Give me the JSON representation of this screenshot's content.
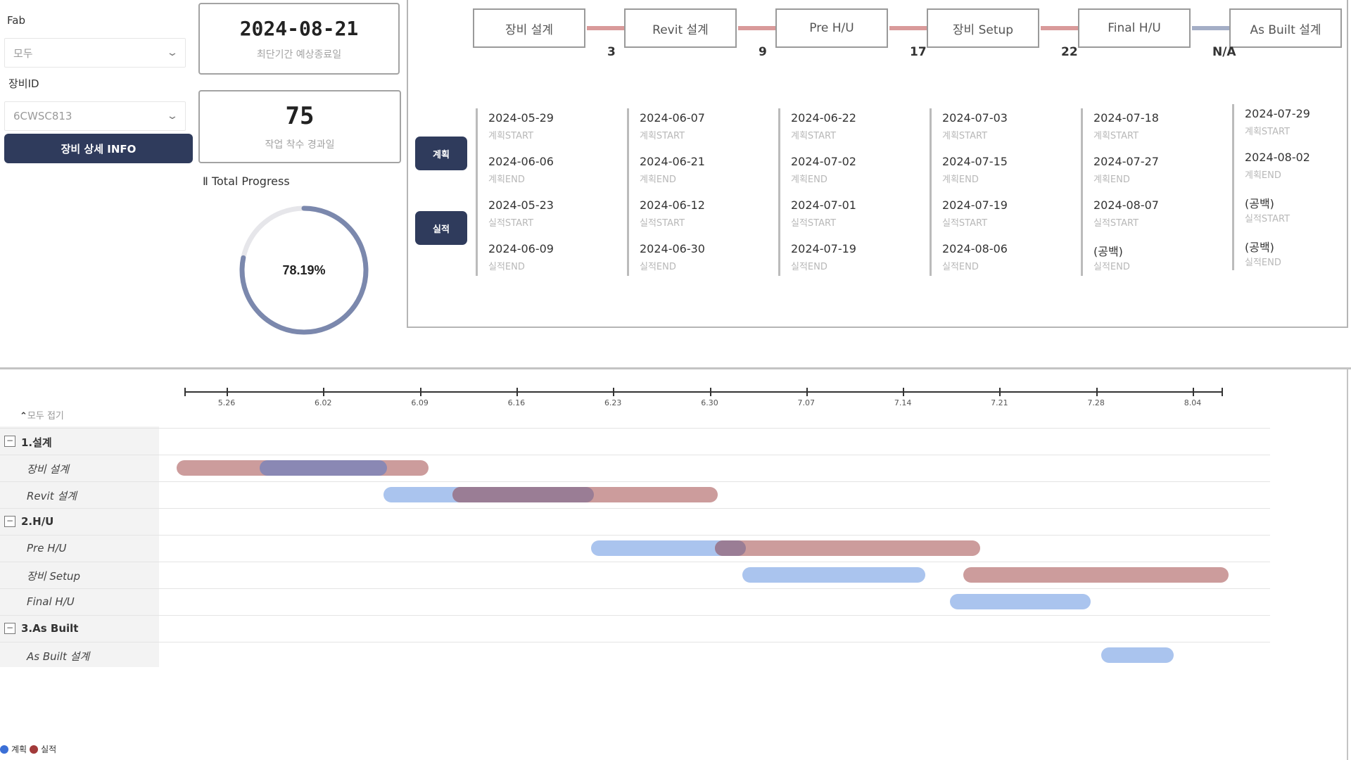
{
  "filters": {
    "fab_label": "Fab",
    "fab_value": "모두",
    "equipment_label": "장비ID",
    "equipment_value": "6CWSC813",
    "info_button": "장비 상세 INFO"
  },
  "cards": {
    "date_value": "2024-08-21",
    "date_caption": "최단기간 예상종료일",
    "days_value": "75",
    "days_caption": "작업 착수 경과일"
  },
  "progress": {
    "title": "Ⅱ Total Progress",
    "value_text": "78.19%",
    "value": 0.7819,
    "color": "#7b88ad"
  },
  "stages": [
    {
      "label": "장비 설계"
    },
    {
      "label": "Revit 설계"
    },
    {
      "label": "Pre H/U"
    },
    {
      "label": "장비 Setup"
    },
    {
      "label": "Final H/U"
    },
    {
      "label": "As Built 설계"
    }
  ],
  "connectors": [
    {
      "gap": "3",
      "color": "#d99a9a"
    },
    {
      "gap": "9",
      "color": "#d99a9a"
    },
    {
      "gap": "17",
      "color": "#d99a9a"
    },
    {
      "gap": "22",
      "color": "#d99a9a"
    },
    {
      "gap": "N/A",
      "color": "#a4aec6"
    }
  ],
  "side_buttons": {
    "plan": "계획",
    "actual": "실적"
  },
  "date_labels": {
    "plan_start": "계획START",
    "plan_end": "계획END",
    "actual_start": "실적START",
    "actual_end": "실적END"
  },
  "stage_dates": [
    {
      "plan_start": "2024-05-29",
      "plan_end": "2024-06-06",
      "actual_start": "2024-05-23",
      "actual_end": "2024-06-09"
    },
    {
      "plan_start": "2024-06-07",
      "plan_end": "2024-06-21",
      "actual_start": "2024-06-12",
      "actual_end": "2024-06-30"
    },
    {
      "plan_start": "2024-06-22",
      "plan_end": "2024-07-02",
      "actual_start": "2024-07-01",
      "actual_end": "2024-07-19"
    },
    {
      "plan_start": "2024-07-03",
      "plan_end": "2024-07-15",
      "actual_start": "2024-07-19",
      "actual_end": "2024-08-06"
    },
    {
      "plan_start": "2024-07-18",
      "plan_end": "2024-07-27",
      "actual_start": "2024-08-07",
      "actual_end": "(공백)"
    },
    {
      "plan_start": "2024-07-29",
      "plan_end": "2024-08-02",
      "actual_start": "(공백)",
      "actual_end": "(공백)"
    }
  ],
  "gantt": {
    "collapse_all": "모두 접기",
    "ticks": [
      "5.26",
      "6.02",
      "6.09",
      "6.16",
      "6.23",
      "6.30",
      "7.07",
      "7.14",
      "7.21",
      "7.28",
      "8.04"
    ],
    "colors": {
      "plan": "#aac4ee",
      "actual": "#cc9c9c",
      "overlap": "#8a88b4",
      "overlap2": "#9a7d95"
    },
    "rows": [
      {
        "type": "group",
        "label": "1.설계",
        "toggle": "−"
      },
      {
        "type": "task",
        "label": "장비 설계"
      },
      {
        "type": "task",
        "label": "Revit 설계"
      },
      {
        "type": "group",
        "label": "2.H/U",
        "toggle": "−"
      },
      {
        "type": "task",
        "label": "Pre H/U"
      },
      {
        "type": "task",
        "label": "장비 Setup"
      },
      {
        "type": "task",
        "label": "Final H/U"
      },
      {
        "type": "group",
        "label": "3.As Built",
        "toggle": "−"
      },
      {
        "type": "task",
        "label": "As Built 설계"
      }
    ],
    "bars": [
      {
        "row": 1,
        "kind": "actual",
        "start": "2024-05-23",
        "end": "2024-06-09"
      },
      {
        "row": 1,
        "kind": "overlap",
        "start": "2024-05-29",
        "end": "2024-06-06"
      },
      {
        "row": 2,
        "kind": "plan",
        "start": "2024-06-07",
        "end": "2024-06-21"
      },
      {
        "row": 2,
        "kind": "actual",
        "start": "2024-06-12",
        "end": "2024-06-30"
      },
      {
        "row": 2,
        "kind": "overlap2",
        "start": "2024-06-12",
        "end": "2024-06-21"
      },
      {
        "row": 4,
        "kind": "plan",
        "start": "2024-06-22",
        "end": "2024-07-02"
      },
      {
        "row": 4,
        "kind": "actual",
        "start": "2024-07-01",
        "end": "2024-07-19"
      },
      {
        "row": 4,
        "kind": "overlap2",
        "start": "2024-07-01",
        "end": "2024-07-02"
      },
      {
        "row": 5,
        "kind": "plan",
        "start": "2024-07-03",
        "end": "2024-07-15"
      },
      {
        "row": 5,
        "kind": "actual",
        "start": "2024-07-19",
        "end": "2024-08-06"
      },
      {
        "row": 6,
        "kind": "plan",
        "start": "2024-07-18",
        "end": "2024-07-27"
      },
      {
        "row": 8,
        "kind": "plan",
        "start": "2024-07-29",
        "end": "2024-08-02"
      }
    ]
  },
  "legend": {
    "plan": "계획",
    "actual": "실적",
    "plan_color": "#3b6fd6",
    "actual_color": "#a23a3a"
  }
}
